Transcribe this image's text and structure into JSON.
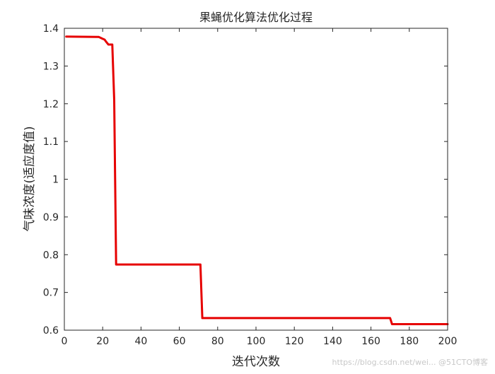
{
  "chart_data": {
    "type": "line",
    "title": "果蝇优化算法优化过程",
    "xlabel": "迭代次数",
    "ylabel": "气味浓度(适应度值)",
    "xlim": [
      0,
      200
    ],
    "ylim": [
      0.6,
      1.4
    ],
    "xticks": [
      "0",
      "20",
      "40",
      "60",
      "80",
      "100",
      "120",
      "140",
      "160",
      "180",
      "200"
    ],
    "yticks": [
      "0.6",
      "0.7",
      "0.8",
      "0.9",
      "1",
      "1.1",
      "1.2",
      "1.3",
      "1.4"
    ],
    "grid": false,
    "series": [
      {
        "color": "#e60000",
        "x": [
          1,
          18,
          20,
          21,
          22,
          23,
          24,
          25,
          26,
          27,
          71,
          72,
          170,
          171,
          200
        ],
        "y": [
          1.378,
          1.377,
          1.372,
          1.37,
          1.363,
          1.357,
          1.357,
          1.357,
          1.21,
          0.774,
          0.774,
          0.632,
          0.632,
          0.616,
          0.616
        ]
      }
    ]
  },
  "watermark": "https://blog.csdn.net/wei... @51CTO博客"
}
